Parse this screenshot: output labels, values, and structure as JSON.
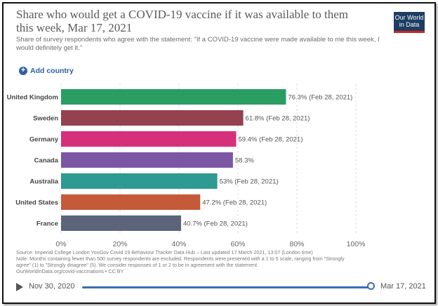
{
  "header": {
    "title": "Share who would get a COVID-19 vaccine if it was available to them this week, Mar 17, 2021",
    "subtitle": "Share of survey respondents who agree with the statement: \"If a COVID-19 vaccine were made available to me this week, I would definitely get it.\"",
    "logo_line1": "Our World",
    "logo_line2": "in Data"
  },
  "controls": {
    "add_country_label": "Add country"
  },
  "chart_data": {
    "type": "bar",
    "orientation": "horizontal",
    "categories": [
      "United Kingdom",
      "Sweden",
      "Germany",
      "Canada",
      "Australia",
      "United States",
      "France"
    ],
    "values": [
      76.3,
      61.8,
      59.4,
      58.3,
      53,
      47.2,
      40.7
    ],
    "value_labels": [
      "76.3% (Feb 28, 2021)",
      "61.8% (Feb 28, 2021)",
      "59.4% (Feb 28, 2021)",
      "58.3%",
      "53% (Feb 28, 2021)",
      "47.2% (Feb 28, 2021)",
      "40.7% (Feb 28, 2021)"
    ],
    "colors": [
      "#2a9d63",
      "#94424f",
      "#d6307b",
      "#7c56a4",
      "#2e9a91",
      "#c55a3a",
      "#5b6478"
    ],
    "xlim": [
      0,
      100
    ],
    "xticks": [
      "0%",
      "20%",
      "40%",
      "60%",
      "80%",
      "100%"
    ],
    "grid": true
  },
  "footer": {
    "source": "Source: Imperial College London YouGov Covid 19 Behaviour Tracker Data Hub – Last updated 17 March 2021, 13:07 (London time)",
    "note_1": "Note: Months containing fewer than 500 survey respondents are excluded. Respondents were presented with a 1 to 5 scale, ranging from \"Strongly",
    "note_2": "agree\" (1) to \"Strongly disagree\" (5). We consider responses of 1 or 2 to be in agreement with the statement.",
    "license": "OurWorldInData.org/covid-vaccinations • CC BY"
  },
  "timeline": {
    "start_date": "Nov 30, 2020",
    "end_date": "Mar 17, 2021",
    "position": 1.0
  }
}
